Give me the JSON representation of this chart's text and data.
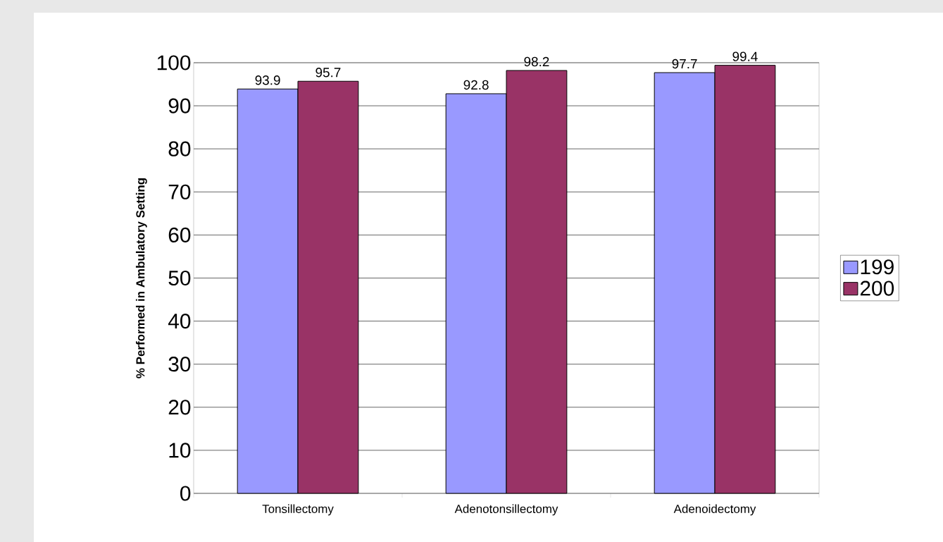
{
  "chart_data": {
    "type": "bar",
    "ylabel": "% Performed in Ambulatory Setting",
    "categories": [
      "Tonsillectomy",
      "Adenotonsillectomy",
      "Adenoidectomy"
    ],
    "series": [
      {
        "name": "199",
        "color": "#9999ff",
        "values": [
          93.9,
          92.8,
          97.7
        ]
      },
      {
        "name": "200",
        "color": "#993366",
        "values": [
          95.7,
          98.2,
          99.4
        ]
      }
    ],
    "ylim": [
      0,
      100
    ],
    "yticks": [
      0,
      10,
      20,
      30,
      40,
      50,
      60,
      70,
      80,
      90,
      100
    ],
    "grid": "y",
    "legend": "right",
    "data_labels": true
  }
}
